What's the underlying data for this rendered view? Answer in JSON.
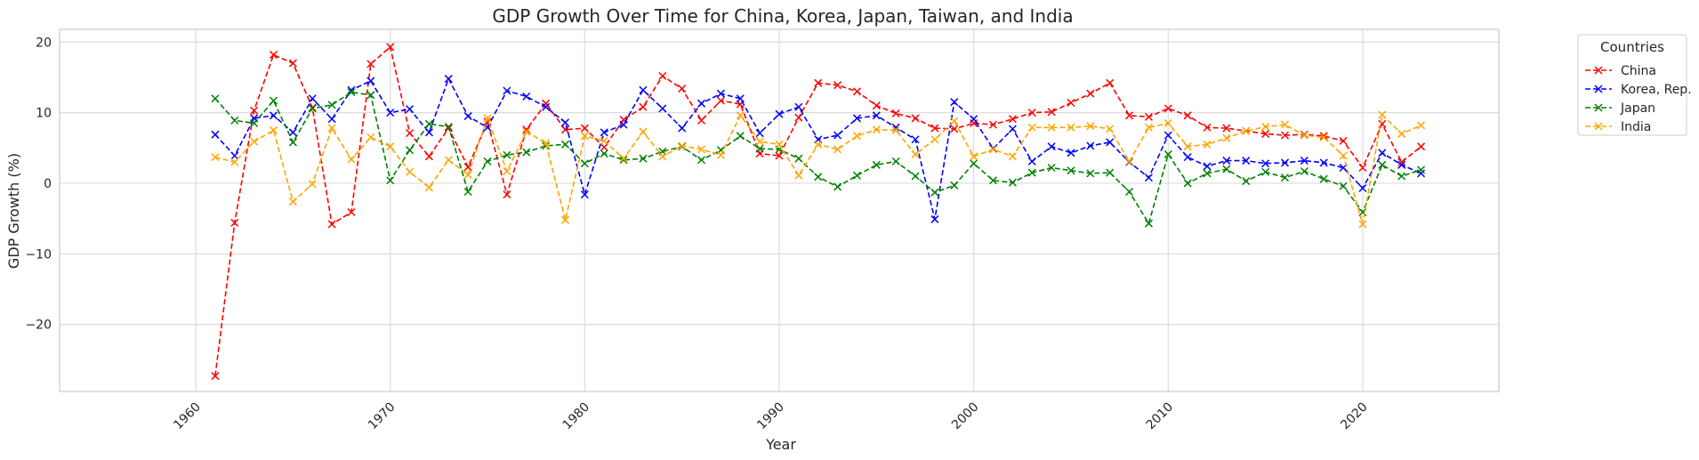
{
  "chart_data": {
    "type": "line",
    "title": "GDP Growth Over Time for China, Korea, Japan, Taiwan, and India",
    "xlabel": "Year",
    "ylabel": "GDP Growth (%)",
    "xlim": [
      1953,
      2027
    ],
    "ylim": [
      -29.5,
      21.8
    ],
    "xticks": [
      1960,
      1970,
      1980,
      1990,
      2000,
      2010,
      2020
    ],
    "yticks": [
      -20,
      -10,
      0,
      10,
      20
    ],
    "grid": true,
    "legend": {
      "title": "Countries",
      "placement": "outside-top-right"
    },
    "marker": "x",
    "line_style": "dashed",
    "x": [
      1961,
      1962,
      1963,
      1964,
      1965,
      1966,
      1967,
      1968,
      1969,
      1970,
      1971,
      1972,
      1973,
      1974,
      1975,
      1976,
      1977,
      1978,
      1979,
      1980,
      1981,
      1982,
      1983,
      1984,
      1985,
      1986,
      1987,
      1988,
      1989,
      1990,
      1991,
      1992,
      1993,
      1994,
      1995,
      1996,
      1997,
      1998,
      1999,
      2000,
      2001,
      2002,
      2003,
      2004,
      2005,
      2006,
      2007,
      2008,
      2009,
      2010,
      2011,
      2012,
      2013,
      2014,
      2015,
      2016,
      2017,
      2018,
      2019,
      2020,
      2021,
      2022,
      2023
    ],
    "series": [
      {
        "name": "China",
        "color": "#ff0000",
        "values": [
          -27.3,
          -5.6,
          10.3,
          18.2,
          17.0,
          10.7,
          -5.8,
          -4.1,
          16.9,
          19.3,
          7.1,
          3.8,
          7.8,
          2.3,
          8.7,
          -1.6,
          7.6,
          11.3,
          7.6,
          7.8,
          5.1,
          9.0,
          10.8,
          15.2,
          13.4,
          8.9,
          11.7,
          11.2,
          4.2,
          3.9,
          9.3,
          14.2,
          13.9,
          13.0,
          11.0,
          9.9,
          9.2,
          7.8,
          7.7,
          8.5,
          8.3,
          9.1,
          10.0,
          10.1,
          11.4,
          12.7,
          14.2,
          9.6,
          9.4,
          10.6,
          9.6,
          7.9,
          7.8,
          7.4,
          7.0,
          6.8,
          6.9,
          6.7,
          6.0,
          2.2,
          8.4,
          3.0,
          5.2
        ]
      },
      {
        "name": "Korea, Rep.",
        "color": "#0000ff",
        "values": [
          6.9,
          3.9,
          9.2,
          9.6,
          7.2,
          12.0,
          9.1,
          13.2,
          14.5,
          10.0,
          10.5,
          7.2,
          14.8,
          9.5,
          7.9,
          13.1,
          12.3,
          10.8,
          8.6,
          -1.6,
          7.2,
          8.3,
          13.2,
          10.6,
          7.8,
          11.3,
          12.7,
          12.0,
          7.1,
          9.8,
          10.8,
          6.2,
          6.8,
          9.2,
          9.6,
          7.9,
          6.2,
          -5.1,
          11.5,
          9.1,
          4.9,
          7.7,
          3.1,
          5.2,
          4.3,
          5.3,
          5.8,
          3.0,
          0.8,
          6.8,
          3.7,
          2.4,
          3.2,
          3.2,
          2.8,
          2.9,
          3.2,
          2.9,
          2.2,
          -0.7,
          4.3,
          2.6,
          1.4
        ]
      },
      {
        "name": "Japan",
        "color": "#008000",
        "values": [
          12.0,
          8.9,
          8.5,
          11.7,
          5.8,
          10.6,
          11.1,
          12.9,
          12.5,
          0.4,
          4.7,
          8.4,
          8.0,
          -1.2,
          3.1,
          4.0,
          4.4,
          5.3,
          5.5,
          2.8,
          4.2,
          3.3,
          3.5,
          4.5,
          5.2,
          3.3,
          4.7,
          6.7,
          4.9,
          4.8,
          3.5,
          0.9,
          -0.5,
          1.1,
          2.6,
          3.1,
          1.0,
          -1.3,
          -0.3,
          2.8,
          0.4,
          0.1,
          1.5,
          2.2,
          1.8,
          1.4,
          1.5,
          -1.2,
          -5.7,
          4.1,
          0.0,
          1.4,
          2.0,
          0.3,
          1.6,
          0.8,
          1.7,
          0.6,
          -0.4,
          -4.1,
          2.6,
          1.0,
          1.9
        ]
      },
      {
        "name": "India",
        "color": "#ffa500",
        "values": [
          3.7,
          3.0,
          5.9,
          7.5,
          -2.6,
          -0.1,
          7.8,
          3.4,
          6.5,
          5.2,
          1.6,
          -0.6,
          3.3,
          1.2,
          9.2,
          1.7,
          7.3,
          5.7,
          -5.2,
          6.7,
          6.0,
          3.5,
          7.3,
          3.8,
          5.3,
          4.8,
          4.0,
          9.6,
          5.9,
          5.5,
          1.1,
          5.5,
          4.8,
          6.7,
          7.6,
          7.5,
          4.1,
          6.2,
          8.8,
          3.8,
          4.8,
          3.8,
          7.9,
          7.9,
          7.9,
          8.1,
          7.7,
          3.1,
          7.9,
          8.5,
          5.2,
          5.5,
          6.4,
          7.4,
          8.0,
          8.3,
          6.8,
          6.5,
          3.9,
          -5.8,
          9.7,
          7.0,
          8.2
        ]
      }
    ]
  }
}
